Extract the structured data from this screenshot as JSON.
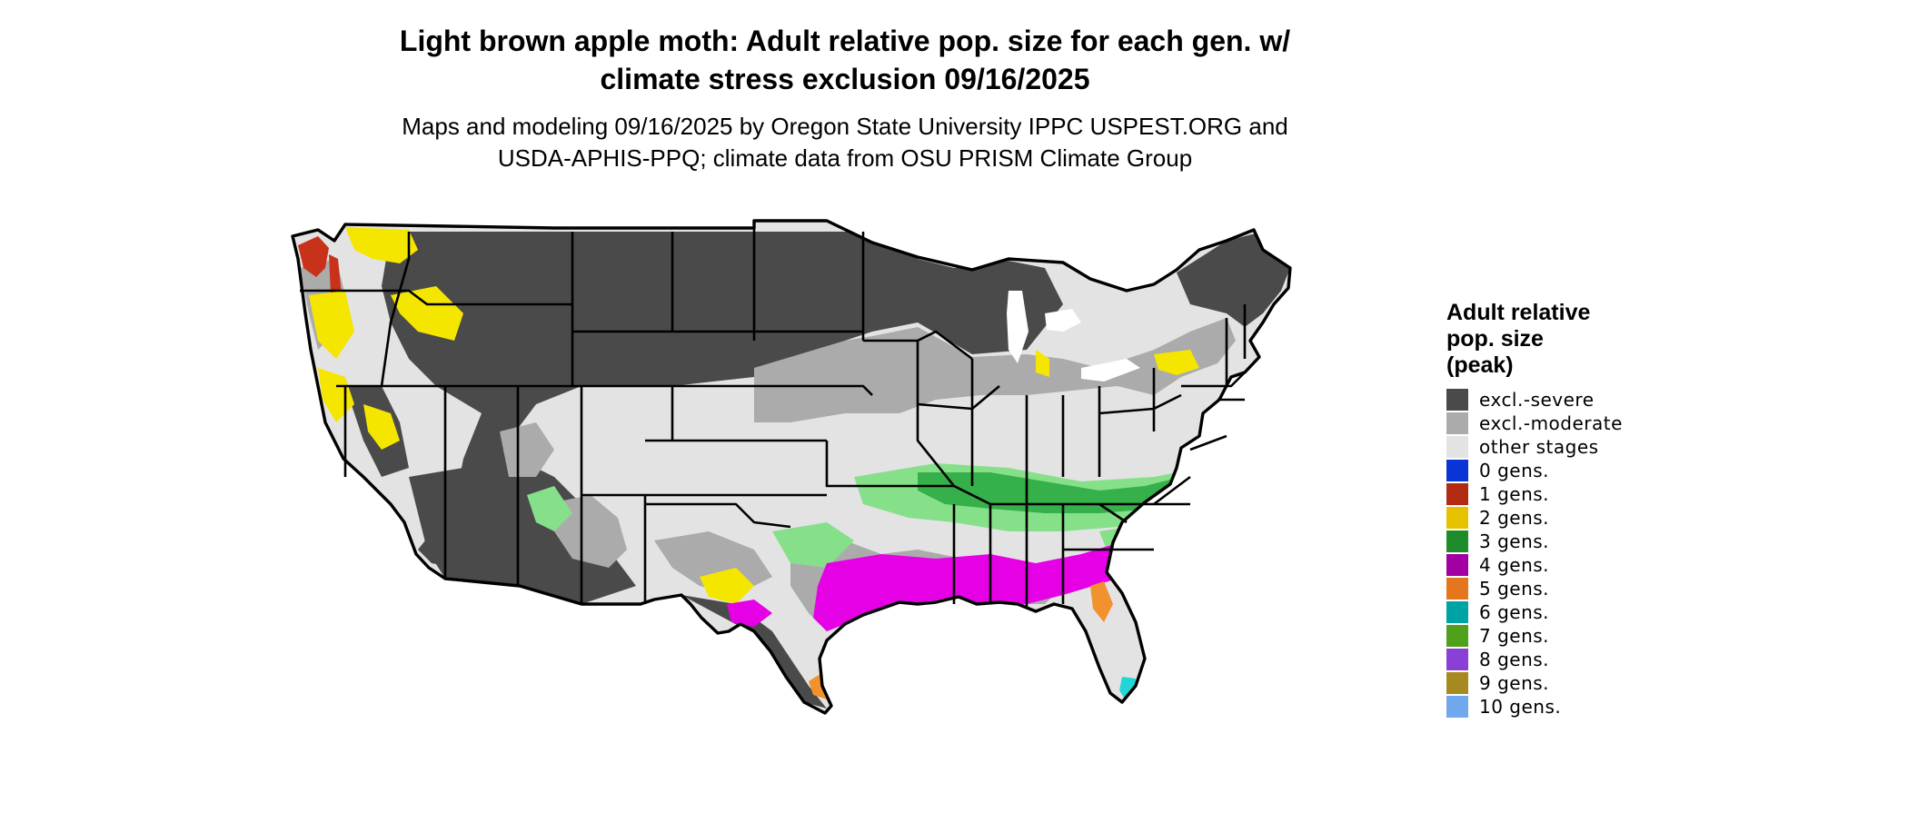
{
  "title": {
    "line1": "Light brown apple moth: Adult relative pop. size for each gen. w/",
    "line2": "climate stress exclusion 09/16/2025"
  },
  "subtitle": {
    "line1": "Maps and modeling 09/16/2025 by Oregon State University IPPC USPEST.ORG and",
    "line2": "USDA-APHIS-PPQ; climate data from OSU PRISM Climate Group"
  },
  "legend": {
    "title_line1": "Adult relative",
    "title_line2": "pop. size",
    "title_line3": "(peak)",
    "items": [
      {
        "label": "excl.-severe",
        "color": "#4a4a4a"
      },
      {
        "label": "excl.-moderate",
        "color": "#ababab"
      },
      {
        "label": "other stages",
        "color": "#e3e3e3"
      },
      {
        "label": "0 gens.",
        "color": "#0a35d6"
      },
      {
        "label": "1 gens.",
        "color": "#b32a12"
      },
      {
        "label": "2 gens.",
        "color": "#e6c200"
      },
      {
        "label": "3 gens.",
        "color": "#1f8c2b"
      },
      {
        "label": "4 gens.",
        "color": "#a300a3"
      },
      {
        "label": "5 gens.",
        "color": "#e6761e"
      },
      {
        "label": "6 gens.",
        "color": "#00a3a3"
      },
      {
        "label": "7 gens.",
        "color": "#4fa01a"
      },
      {
        "label": "8 gens.",
        "color": "#8a3fd6"
      },
      {
        "label": "9 gens.",
        "color": "#a68a20"
      },
      {
        "label": "10 gens.",
        "color": "#6fa8ec"
      }
    ]
  },
  "map_colors": {
    "severe": "#4a4a4a",
    "moderate": "#ababab",
    "other": "#e3e3e3",
    "gen1": "#c8321a",
    "gen2": "#f5e600",
    "gen3_light": "#86e08a",
    "gen3": "#36b04a",
    "gen4": "#e600e6",
    "gen5": "#f2922e",
    "gen6": "#22d6d6",
    "border": "#000000"
  }
}
